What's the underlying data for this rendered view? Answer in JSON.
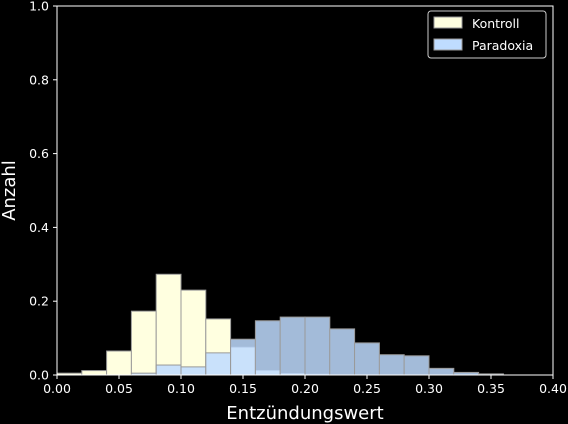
{
  "chart_data": {
    "type": "bar",
    "subtype": "overlaid-histogram",
    "title": "",
    "xlabel": "Entzündungswert",
    "ylabel": "Anzahl",
    "xlim": [
      0.0,
      0.4
    ],
    "ylim": [
      0.0,
      1.0
    ],
    "xticks": [
      "0.00",
      "0.05",
      "0.10",
      "0.15",
      "0.20",
      "0.25",
      "0.30",
      "0.35",
      "0.40"
    ],
    "yticks": [
      "0.0",
      "0.2",
      "0.4",
      "0.6",
      "0.8",
      "1.0"
    ],
    "grid": false,
    "legend_position": "top-right",
    "bin_edges": [
      0.0,
      0.02,
      0.04,
      0.06,
      0.08,
      0.1,
      0.12,
      0.14,
      0.16,
      0.18,
      0.2,
      0.22,
      0.24,
      0.26,
      0.28,
      0.3,
      0.32,
      0.34,
      0.36,
      0.38,
      0.4
    ],
    "series": [
      {
        "name": "Kontroll",
        "color": "#ffffe0",
        "values": [
          0.005,
          0.012,
          0.065,
          0.173,
          0.273,
          0.23,
          0.152,
          0.075,
          0.012,
          0.004,
          0.002,
          0.0,
          0.0,
          0.0,
          0.0,
          0.0,
          0.0,
          0.0,
          0.0,
          0.0
        ]
      },
      {
        "name": "Paradoxia",
        "color": "#bfdcff",
        "values": [
          0.0,
          0.0,
          0.0,
          0.005,
          0.027,
          0.022,
          0.06,
          0.097,
          0.147,
          0.157,
          0.157,
          0.125,
          0.087,
          0.055,
          0.052,
          0.018,
          0.007,
          0.003,
          0.0,
          0.0
        ]
      }
    ]
  }
}
